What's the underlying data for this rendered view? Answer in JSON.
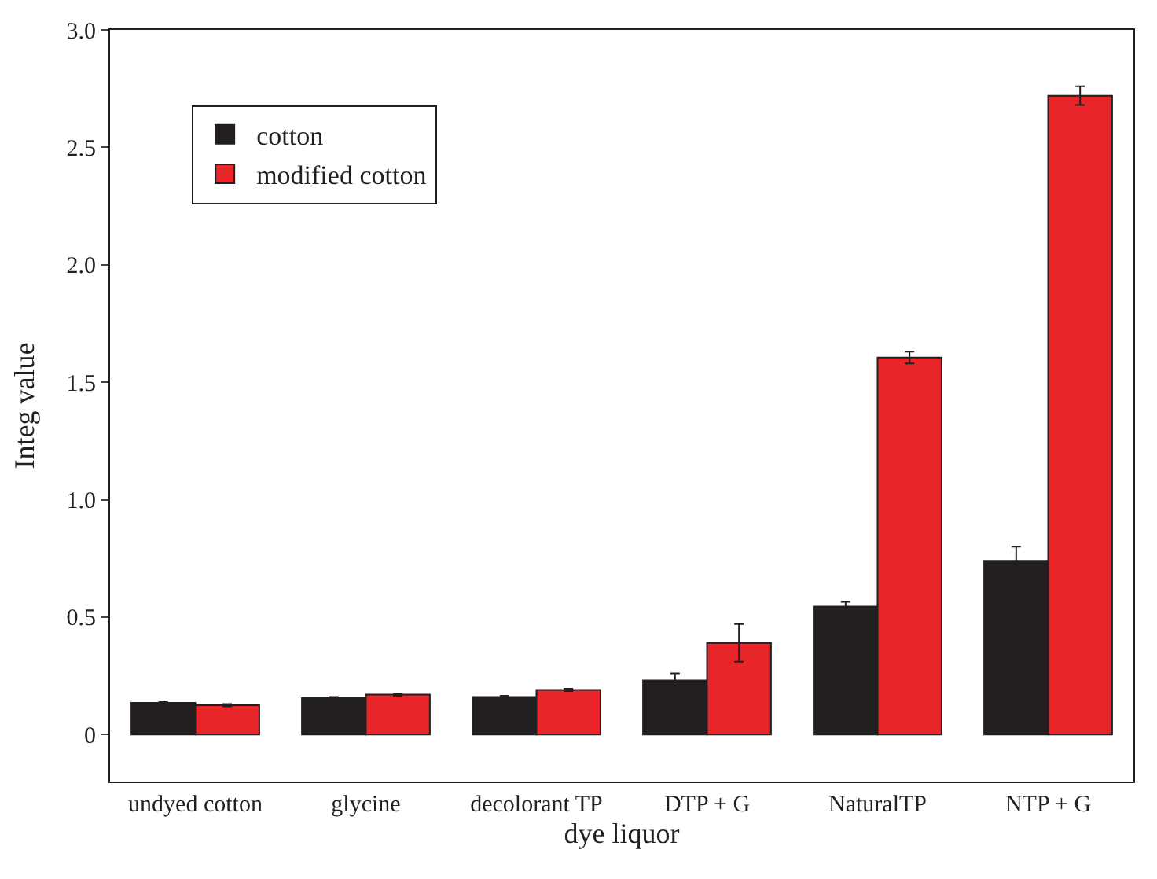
{
  "chart_data": {
    "type": "bar",
    "xlabel": "dye liquor",
    "ylabel": "Integ value",
    "categories": [
      "undyed cotton",
      "glycine",
      "decolorant TP",
      "DTP + G",
      "NaturalTP",
      "NTP + G"
    ],
    "series": [
      {
        "name": "cotton",
        "color": "#231f20",
        "values": [
          0.135,
          0.155,
          0.16,
          0.23,
          0.545,
          0.74
        ],
        "errors": [
          0.005,
          0.005,
          0.005,
          0.03,
          0.02,
          0.06
        ]
      },
      {
        "name": "modified cotton",
        "color": "#e8262a",
        "values": [
          0.125,
          0.17,
          0.19,
          0.39,
          1.605,
          2.72
        ],
        "errors": [
          0.005,
          0.005,
          0.005,
          0.08,
          0.025,
          0.04
        ]
      }
    ],
    "ylim": [
      -0.2,
      3.0
    ],
    "yticks": [
      0,
      0.5,
      {
        "value": 1,
        "label": "1.0"
      },
      1.5,
      {
        "value": 2,
        "label": "2.0"
      },
      2.5,
      {
        "value": 3,
        "label": "3.0"
      }
    ],
    "legend": "top left"
  }
}
